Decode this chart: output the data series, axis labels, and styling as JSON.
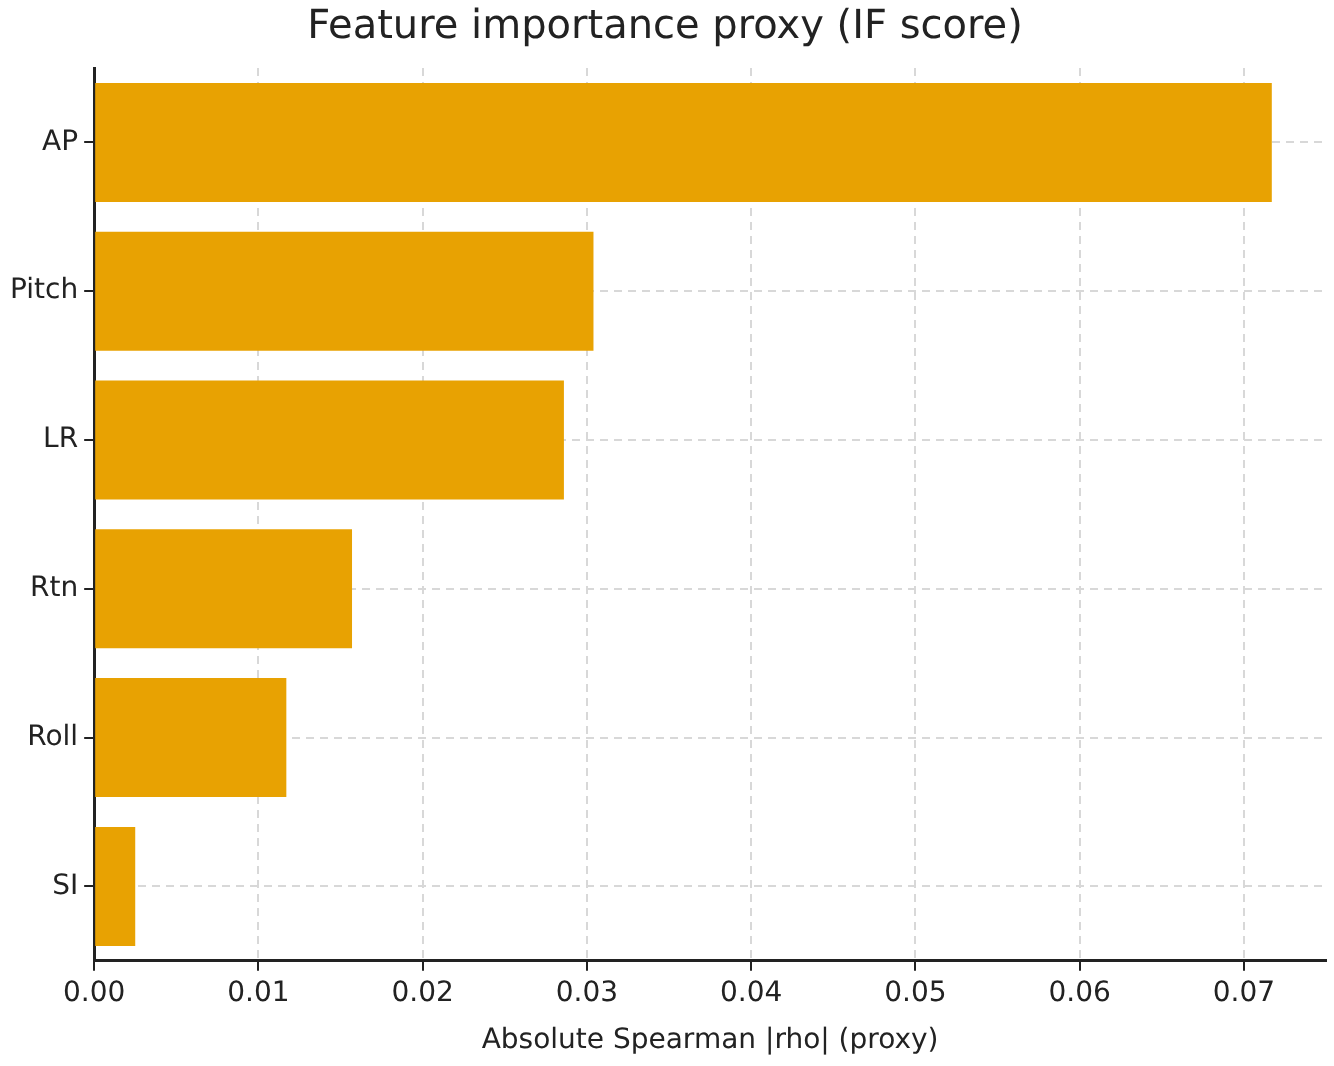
{
  "chart_data": {
    "type": "bar",
    "orientation": "horizontal",
    "title": "Feature importance proxy (IF score)",
    "xlabel": "Absolute Spearman |rho| (proxy)",
    "categories": [
      "AP",
      "Pitch",
      "LR",
      "Rtn",
      "Roll",
      "SI"
    ],
    "values": [
      0.0717,
      0.0304,
      0.0286,
      0.0157,
      0.0117,
      0.0025
    ],
    "color": "#e8a202",
    "xlim": [
      0,
      0.075
    ],
    "xticks": [
      {
        "value": 0,
        "label": "0.00"
      },
      {
        "value": 0.01,
        "label": "0.01"
      },
      {
        "value": 0.02,
        "label": "0.02"
      },
      {
        "value": 0.03,
        "label": "0.03"
      },
      {
        "value": 0.04,
        "label": "0.04"
      },
      {
        "value": 0.05,
        "label": "0.05"
      },
      {
        "value": 0.06,
        "label": "0.06"
      },
      {
        "value": 0.07,
        "label": "0.07"
      }
    ],
    "grid": true,
    "line_style": "dashed"
  }
}
